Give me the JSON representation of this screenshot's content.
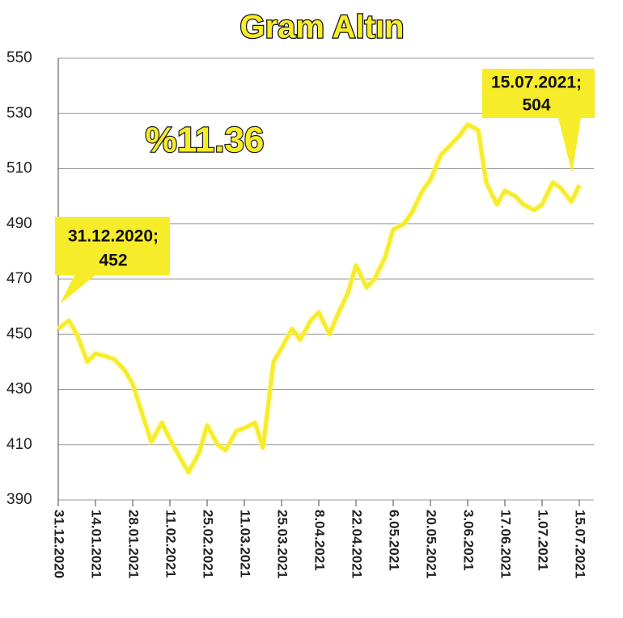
{
  "chart_data": {
    "type": "line",
    "title": "Gram Altın",
    "annotations": [
      "%11.36",
      [
        "31.12.2020;",
        "452"
      ],
      [
        "15.07.2021;",
        "504"
      ]
    ],
    "x": [
      "31.12.2020",
      "4.01.2021",
      "7.01.2021",
      "11.01.2021",
      "14.01.2021",
      "18.01.2021",
      "21.01.2021",
      "25.01.2021",
      "28.01.2021",
      "1.02.2021",
      "4.02.2021",
      "8.02.2021",
      "11.02.2021",
      "15.02.2021",
      "18.02.2021",
      "22.02.2021",
      "25.02.2021",
      "1.03.2021",
      "4.03.2021",
      "8.03.2021",
      "11.03.2021",
      "15.03.2021",
      "18.03.2021",
      "22.03.2021",
      "25.03.2021",
      "29.03.2021",
      "1.04.2021",
      "5.04.2021",
      "8.04.2021",
      "12.04.2021",
      "15.04.2021",
      "19.04.2021",
      "22.04.2021",
      "26.04.2021",
      "29.04.2021",
      "3.05.2021",
      "6.05.2021",
      "10.05.2021",
      "13.05.2021",
      "17.05.2021",
      "20.05.2021",
      "24.05.2021",
      "27.05.2021",
      "31.05.2021",
      "3.06.2021",
      "7.06.2021",
      "10.06.2021",
      "14.06.2021",
      "17.06.2021",
      "21.06.2021",
      "24.06.2021",
      "28.06.2021",
      "1.07.2021",
      "5.07.2021",
      "8.07.2021",
      "12.07.2021",
      "15.07.2021"
    ],
    "series": [
      {
        "color": "#f7ec2a",
        "values": [
          452,
          455,
          450,
          440,
          443,
          442,
          441,
          437,
          432,
          420,
          411,
          418,
          412,
          405,
          400,
          407,
          417,
          410,
          408,
          415,
          416,
          418,
          409,
          440,
          445,
          452,
          448,
          455,
          458,
          450,
          457,
          465,
          475,
          467,
          470,
          478,
          488,
          490,
          494,
          502,
          506,
          515,
          518,
          522,
          526,
          524,
          505,
          497,
          502,
          500,
          497,
          495,
          497,
          505,
          503,
          498,
          504
        ]
      }
    ],
    "xlim": [
      "31.12.2020",
      "15.07.2021"
    ],
    "xticks": [
      "31.12.2020",
      "14.01.2021",
      "28.01.2021",
      "11.02.2021",
      "25.02.2021",
      "11.03.2021",
      "25.03.2021",
      "8.04.2021",
      "22.04.2021",
      "6.05.2021",
      "20.05.2021",
      "3.06.2021",
      "17.06.2021",
      "1.07.2021",
      "15.07.2021"
    ],
    "ylim": [
      390,
      550
    ],
    "yticks": [
      390,
      410,
      430,
      450,
      470,
      490,
      510,
      530,
      550
    ],
    "grid": true
  }
}
